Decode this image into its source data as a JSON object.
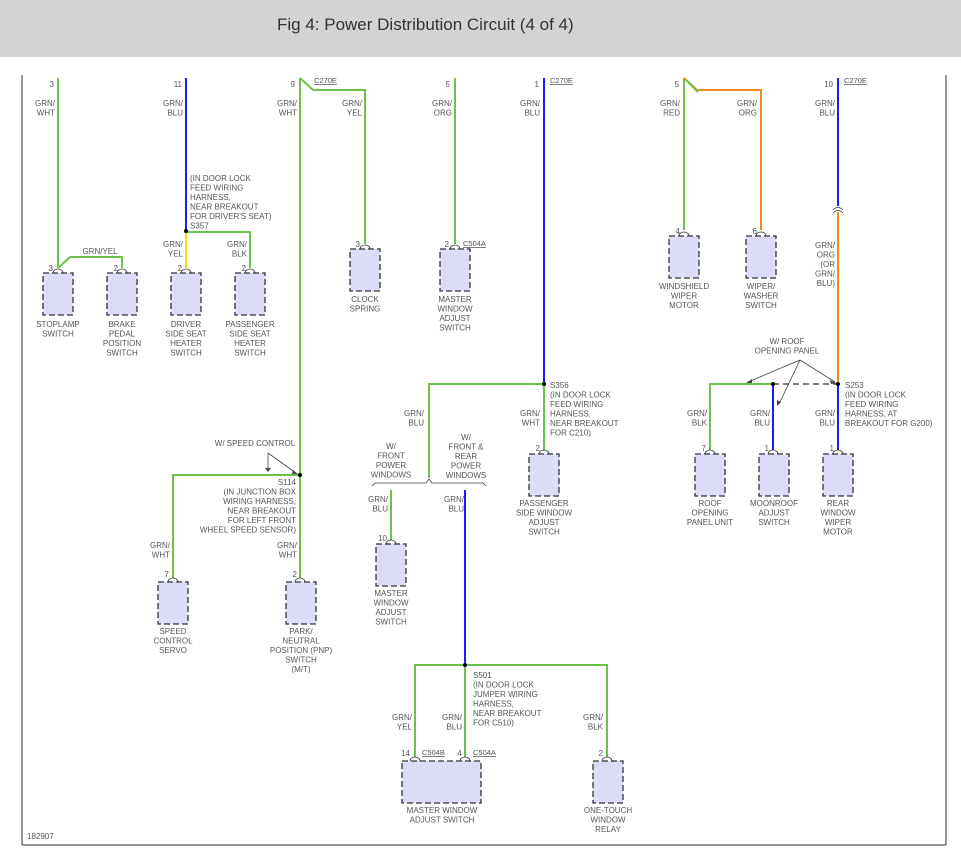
{
  "title": "Fig 4: Power Distribution Circuit (4 of 4)",
  "figure_id": "182907",
  "colors": {
    "green": "#6cc24a",
    "blue": "#1a1aff",
    "orange": "#f08c20",
    "yellow": "#e6e600",
    "component_fill": "#dcdcf8",
    "header_bg": "#d3d3d3"
  },
  "top_pins": [
    "3",
    "11",
    "9",
    "5",
    "1",
    "5",
    "10"
  ],
  "top_connectors": [
    "C270E",
    "C270E",
    "C270E"
  ],
  "wires": {
    "w3": [
      "GRN/",
      "WHT"
    ],
    "w11": [
      "GRN/",
      "BLU"
    ],
    "w9": [
      "GRN/",
      "WHT"
    ],
    "w9b": [
      "GRN/",
      "YEL"
    ],
    "w5": [
      "GRN/",
      "ORG"
    ],
    "w1": [
      "GRN/",
      "BLU"
    ],
    "w5r": [
      "GRN/",
      "RED"
    ],
    "w5o": [
      "GRN/",
      "ORG"
    ],
    "w10": [
      "GRN/",
      "BLU"
    ],
    "brake": [
      "GRN/YEL"
    ],
    "drv": [
      "GRN/",
      "YEL"
    ],
    "pas": [
      "GRN/",
      "BLK"
    ],
    "w10b": [
      "GRN/",
      "ORG",
      "(OR",
      "GRN/",
      "BLU)"
    ],
    "roof": [
      "GRN/",
      "BLK"
    ],
    "moon": [
      "GRN/",
      "BLU"
    ],
    "rear": [
      "GRN/",
      "BLU"
    ],
    "s356l": [
      "GRN/",
      "BLU"
    ],
    "s356d": [
      "GRN/",
      "WHT"
    ],
    "front": [
      "GRN/",
      "BLU"
    ],
    "frontrear": [
      "GRN/",
      "BLU"
    ],
    "servo": [
      "GRN/",
      "WHT"
    ],
    "pnp": [
      "GRN/",
      "WHT"
    ],
    "mw14": [
      "GRN/",
      "YEL"
    ],
    "mw4": [
      "GRN/",
      "BLU"
    ],
    "relay": [
      "GRN/",
      "BLK"
    ]
  },
  "splices": {
    "s357": [
      "(IN DOOR LOCK",
      "FEED WIRING",
      "HARNESS,",
      "NEAR BREAKOUT",
      "FOR DRIVER'S SEAT)",
      "S357"
    ],
    "s356": [
      "S356",
      "(IN DOOR LOCK",
      "FEED WIRING",
      "HARNESS,",
      "NEAR BREAKOUT",
      "FOR C210)"
    ],
    "s253": [
      "S253",
      "(IN DOOR LOCK",
      "FEED WIRING",
      "HARNESS, AT",
      "BREAKOUT FOR G200)"
    ],
    "s114": [
      "S114",
      "(IN JUNCTION BOX",
      "WIRING HARNESS,",
      "NEAR BREAKOUT",
      "FOR LEFT FRONT",
      "WHEEL SPEED SENSOR)"
    ],
    "s501": [
      "S501",
      "(IN DOOR LOCK",
      "JUMPER WIRING",
      "HARNESS,",
      "NEAR BREAKOUT",
      "FOR C510)"
    ]
  },
  "options": {
    "roof_panel": [
      "W/ ROOF",
      "OPENING PANEL"
    ],
    "speed_control": [
      "W/ SPEED CONTROL"
    ],
    "front_windows": [
      "W/",
      "FRONT",
      "POWER",
      "WINDOWS"
    ],
    "front_rear_windows": [
      "W/",
      "FRONT &",
      "REAR",
      "POWER",
      "WINDOWS"
    ]
  },
  "components": [
    {
      "pin": "3",
      "name": [
        "STOPLAMP",
        "SWITCH"
      ]
    },
    {
      "pin": "2",
      "name": [
        "BRAKE",
        "PEDAL",
        "POSITION",
        "SWITCH"
      ]
    },
    {
      "pin": "2",
      "name": [
        "DRIVER",
        "SIDE SEAT",
        "HEATER",
        "SWITCH"
      ]
    },
    {
      "pin": "2",
      "name": [
        "PASSENGER",
        "SIDE SEAT",
        "HEATER",
        "SWITCH"
      ]
    },
    {
      "pin": "3",
      "name": [
        "CLOCK",
        "SPRING"
      ]
    },
    {
      "pin": "2",
      "connector": "C504A",
      "name": [
        "MASTER",
        "WINDOW",
        "ADJUST",
        "SWITCH"
      ]
    },
    {
      "pin": "4",
      "name": [
        "WINDSHIELD",
        "WIPER",
        "MOTOR"
      ]
    },
    {
      "pin": "6",
      "name": [
        "WIPER/",
        "WASHER",
        "SWITCH"
      ]
    },
    {
      "pin": "7",
      "name": [
        "ROOF",
        "OPENING",
        "PANEL UNIT"
      ]
    },
    {
      "pin": "1",
      "name": [
        "MOONROOF",
        "ADJUST",
        "SWITCH"
      ]
    },
    {
      "pin": "1",
      "name": [
        "REAR",
        "WINDOW",
        "WIPER",
        "MOTOR"
      ]
    },
    {
      "pin": "2",
      "name": [
        "PASSENGER",
        "SIDE WINDOW",
        "ADJUST",
        "SWITCH"
      ]
    },
    {
      "pin": "10",
      "name": [
        "MASTER",
        "WINDOW",
        "ADJUST",
        "SWITCH"
      ]
    },
    {
      "pin": "7",
      "name": [
        "SPEED",
        "CONTROL",
        "SERVO"
      ]
    },
    {
      "pin": "2",
      "name": [
        "PARK/",
        "NEUTRAL",
        "POSITION (PNP)",
        "SWITCH",
        "(M/T)"
      ]
    },
    {
      "pin": "14",
      "connector": "C504B",
      "pin2": "4",
      "connector2": "C504A",
      "name": [
        "MASTER WINDOW",
        "ADJUST SWITCH"
      ]
    },
    {
      "pin": "2",
      "name": [
        "ONE-TOUCH",
        "WINDOW",
        "RELAY"
      ]
    }
  ]
}
